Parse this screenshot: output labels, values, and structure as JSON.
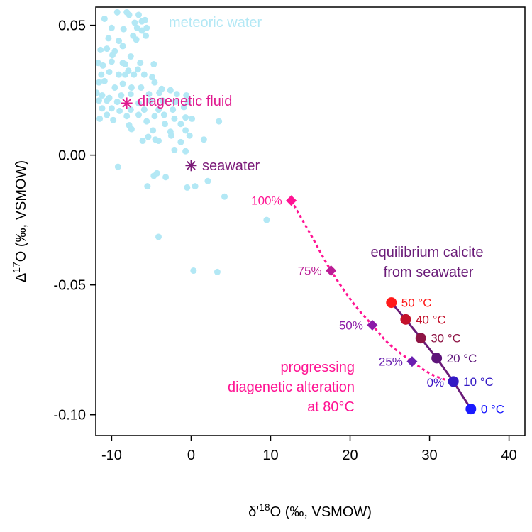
{
  "chart_data": {
    "type": "scatter",
    "xlabel_parts": {
      "delta": "δ",
      "prime": "'",
      "sup": "18",
      "rest": "O (‰, VSMOW)"
    },
    "ylabel_parts": {
      "delta": "Δ",
      "sup": "17",
      "rest": "O (‰, VSMOW)"
    },
    "xlim": [
      -12,
      42
    ],
    "ylim": [
      -0.108,
      0.057
    ],
    "x_ticks": [
      -10,
      0,
      10,
      20,
      30,
      40
    ],
    "x_tick_labels": [
      "-10",
      "0",
      "10",
      "20",
      "30",
      "40"
    ],
    "y_ticks": [
      -0.1,
      -0.05,
      0.0,
      0.05
    ],
    "y_tick_labels": [
      "-0.10",
      "-0.05",
      "0.00",
      "0.05"
    ],
    "colors": {
      "meteoric": "#b3e8f5",
      "diagenetic": "#e0198f",
      "seawater": "#7b1a78",
      "calcite_line": "#6a1b78",
      "axes": "#000000"
    },
    "annotations": {
      "meteoric_water": "meteoric water",
      "diagenetic_fluid": "diagenetic fluid",
      "seawater": "seawater",
      "equilibrium_line1": "equilibrium calcite",
      "equilibrium_line2": "from seawater",
      "progress_line1": "progressing",
      "progress_line2": "diagenetic alteration",
      "progress_line3": "at 80°C"
    },
    "meteoric_points": [
      [
        -10.9,
        0.0525
      ],
      [
        -9.3,
        0.055
      ],
      [
        -8.1,
        0.055
      ],
      [
        -7.8,
        0.054
      ],
      [
        -6.6,
        0.054
      ],
      [
        -6.2,
        0.0515
      ],
      [
        -5.8,
        0.052
      ],
      [
        -7.1,
        0.051
      ],
      [
        -10.0,
        0.049
      ],
      [
        -8.5,
        0.0485
      ],
      [
        -6.8,
        0.049
      ],
      [
        -6.2,
        0.048
      ],
      [
        -5.6,
        0.049
      ],
      [
        -7.3,
        0.046
      ],
      [
        -10.4,
        0.045
      ],
      [
        -9.1,
        0.044
      ],
      [
        -6.9,
        0.0445
      ],
      [
        -5.7,
        0.046
      ],
      [
        -8.6,
        0.042
      ],
      [
        -10.6,
        0.041
      ],
      [
        -11.4,
        0.0405
      ],
      [
        -9.6,
        0.04
      ],
      [
        -7.6,
        0.038
      ],
      [
        -9.9,
        0.0385
      ],
      [
        -11.7,
        0.0355
      ],
      [
        -11.1,
        0.0345
      ],
      [
        -10.0,
        0.036
      ],
      [
        -8.6,
        0.0355
      ],
      [
        -8.3,
        0.035
      ],
      [
        -7.9,
        0.0325
      ],
      [
        -6.4,
        0.0355
      ],
      [
        -6.7,
        0.033
      ],
      [
        -4.7,
        0.035
      ],
      [
        -11.3,
        0.031
      ],
      [
        -10.3,
        0.032
      ],
      [
        -9.1,
        0.031
      ],
      [
        -8.3,
        0.031
      ],
      [
        -7.2,
        0.031
      ],
      [
        -5.9,
        0.031
      ],
      [
        -4.9,
        0.03
      ],
      [
        -4.6,
        0.028
      ],
      [
        -11.6,
        0.028
      ],
      [
        -10.9,
        0.0285
      ],
      [
        -9.6,
        0.026
      ],
      [
        -8.6,
        0.0275
      ],
      [
        -7.5,
        0.026
      ],
      [
        -6.3,
        0.026
      ],
      [
        -3.7,
        0.0255
      ],
      [
        -2.6,
        0.025
      ],
      [
        -11.9,
        0.024
      ],
      [
        -11.2,
        0.023
      ],
      [
        -10.3,
        0.022
      ],
      [
        -8.8,
        0.023
      ],
      [
        -7.6,
        0.0235
      ],
      [
        -5.3,
        0.0235
      ],
      [
        -4.0,
        0.024
      ],
      [
        -1.8,
        0.0235
      ],
      [
        -0.6,
        0.023
      ],
      [
        -11.6,
        0.021
      ],
      [
        -10.6,
        0.021
      ],
      [
        -9.3,
        0.0205
      ],
      [
        -6.6,
        0.02
      ],
      [
        -5.1,
        0.021
      ],
      [
        -3.6,
        0.021
      ],
      [
        -2.0,
        0.0205
      ],
      [
        -0.4,
        0.0205
      ],
      [
        -11.2,
        0.018
      ],
      [
        -10.0,
        0.018
      ],
      [
        -9.0,
        0.017
      ],
      [
        -7.6,
        0.0175
      ],
      [
        -5.9,
        0.0175
      ],
      [
        -4.1,
        0.0175
      ],
      [
        -2.3,
        0.0175
      ],
      [
        -0.9,
        0.0185
      ],
      [
        -10.6,
        0.0155
      ],
      [
        -8.1,
        0.015
      ],
      [
        -6.6,
        0.0155
      ],
      [
        -4.6,
        0.015
      ],
      [
        -3.4,
        0.0155
      ],
      [
        -2.1,
        0.014
      ],
      [
        -0.7,
        0.0145
      ],
      [
        0.1,
        0.014
      ],
      [
        3.5,
        0.013
      ],
      [
        -11.5,
        0.014
      ],
      [
        -9.8,
        0.0135
      ],
      [
        -7.8,
        0.0115
      ],
      [
        -5.6,
        0.013
      ],
      [
        -3.3,
        0.012
      ],
      [
        -1.3,
        0.012
      ],
      [
        -7.5,
        0.01
      ],
      [
        -4.8,
        0.0095
      ],
      [
        -2.6,
        0.009
      ],
      [
        -0.7,
        0.0095
      ],
      [
        -5.4,
        0.007
      ],
      [
        -2.5,
        0.0075
      ],
      [
        -0.2,
        0.0075
      ],
      [
        -6.1,
        0.0055
      ],
      [
        -4.5,
        0.006
      ],
      [
        -4.1,
        0.0055
      ],
      [
        -1.3,
        0.005
      ],
      [
        1.6,
        0.006
      ],
      [
        -2.1,
        0.002
      ],
      [
        -0.7,
        0.0015
      ],
      [
        -9.2,
        -0.0045
      ],
      [
        -4.3,
        -0.007
      ],
      [
        -4.7,
        -0.008
      ],
      [
        -3.2,
        -0.0085
      ],
      [
        -5.5,
        -0.012
      ],
      [
        -0.5,
        -0.0125
      ],
      [
        0.5,
        -0.012
      ],
      [
        2.1,
        -0.01
      ],
      [
        4.2,
        -0.016
      ],
      [
        9.5,
        -0.025
      ],
      [
        -4.1,
        -0.0315
      ],
      [
        0.3,
        -0.0445
      ],
      [
        3.3,
        -0.045
      ]
    ],
    "diagenetic_fluid_point": {
      "x": -8.1,
      "y": 0.02
    },
    "seawater_point": {
      "x": 0.0,
      "y": -0.004
    },
    "alteration_points": [
      {
        "x": 12.6,
        "y": -0.0175,
        "label": "100%",
        "color": "#ff1493"
      },
      {
        "x": 17.6,
        "y": -0.0445,
        "label": "75%",
        "color": "#bb1d95"
      },
      {
        "x": 22.8,
        "y": -0.0655,
        "label": "50%",
        "color": "#8b1aa8"
      },
      {
        "x": 27.8,
        "y": -0.0795,
        "label": "25%",
        "color": "#6a1fb0"
      },
      {
        "x": 33.0,
        "y": -0.0875,
        "label": "0%",
        "color": "#3b10c4"
      }
    ],
    "alteration_curve": [
      [
        12.6,
        -0.0175
      ],
      [
        15.3,
        -0.032
      ],
      [
        17.6,
        -0.0445
      ],
      [
        20.4,
        -0.057
      ],
      [
        22.8,
        -0.0655
      ],
      [
        25.0,
        -0.073
      ],
      [
        27.8,
        -0.0795
      ],
      [
        30.3,
        -0.0845
      ],
      [
        33.0,
        -0.0875
      ]
    ],
    "calcite_points": [
      {
        "x": 25.2,
        "y": -0.0568,
        "label": "50 °C",
        "color": "#ff1a1a"
      },
      {
        "x": 27.0,
        "y": -0.0633,
        "label": "40 °C",
        "color": "#c4122c"
      },
      {
        "x": 28.9,
        "y": -0.0705,
        "label": "30 °C",
        "color": "#8e1545"
      },
      {
        "x": 30.9,
        "y": -0.0782,
        "label": "20 °C",
        "color": "#5e147a"
      },
      {
        "x": 33.0,
        "y": -0.0872,
        "label": "10 °C",
        "color": "#3319c4"
      },
      {
        "x": 35.2,
        "y": -0.0978,
        "label": "0 °C",
        "color": "#1a1aff"
      }
    ]
  }
}
